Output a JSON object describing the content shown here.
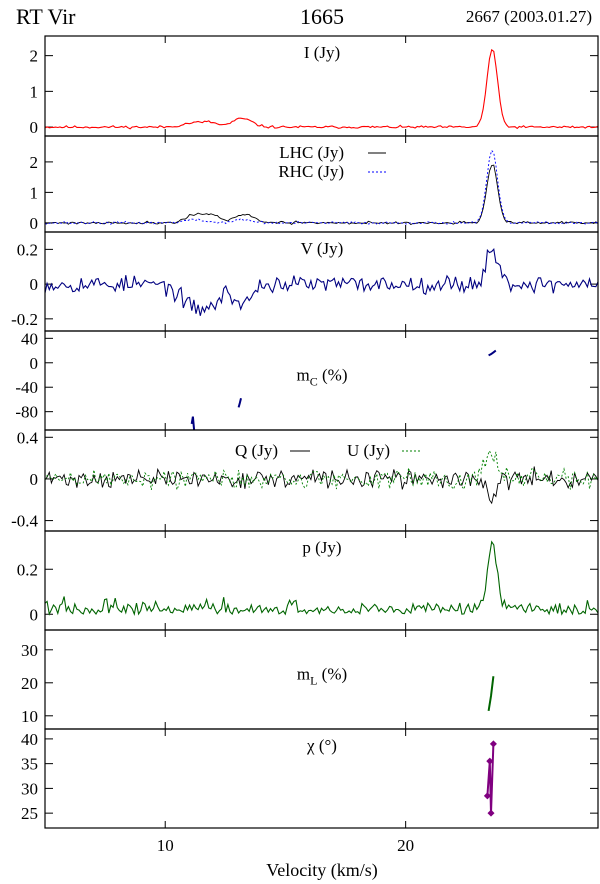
{
  "header": {
    "star": "RT Vir",
    "line": "1665",
    "epoch": "2667 (2003.01.27)"
  },
  "chart_data": {
    "type": "line",
    "xlabel": "Velocity (km/s)",
    "xlim": [
      5,
      28
    ],
    "xticks": [
      10,
      20
    ],
    "panels": [
      {
        "id": "I",
        "label": "I (Jy)",
        "ylim": [
          -0.25,
          2.55
        ],
        "yticks": [
          0,
          1,
          2
        ],
        "series": [
          {
            "key": "I",
            "color": "#ff0000",
            "dash": "",
            "width": 1.1,
            "features": [
              {
                "x": 23.6,
                "w": 0.22,
                "a": 2.18
              },
              {
                "x": 11.2,
                "w": 0.45,
                "a": 0.12
              },
              {
                "x": 11.9,
                "w": 0.3,
                "a": 0.1
              },
              {
                "x": 13.2,
                "w": 0.4,
                "a": 0.24
              }
            ],
            "noise": 0.025,
            "seed": 11
          }
        ]
      },
      {
        "id": "LR",
        "ylim": [
          -0.3,
          2.85
        ],
        "yticks": [
          0,
          1,
          2
        ],
        "legend": [
          {
            "label": "LHC (Jy)",
            "color": "#000000",
            "dash": ""
          },
          {
            "label": "RHC (Jy)",
            "color": "#0000ff",
            "dash": "2,2"
          }
        ],
        "series": [
          {
            "key": "LHC",
            "color": "#000000",
            "dash": "",
            "width": 0.9,
            "features": [
              {
                "x": 23.6,
                "w": 0.22,
                "a": 1.95
              },
              {
                "x": 11.2,
                "w": 0.35,
                "a": 0.28
              },
              {
                "x": 11.95,
                "w": 0.3,
                "a": 0.26
              },
              {
                "x": 13.3,
                "w": 0.4,
                "a": 0.28
              }
            ],
            "noise": 0.03,
            "seed": 21
          },
          {
            "key": "RHC",
            "color": "#0000ff",
            "dash": "2,2",
            "width": 0.9,
            "features": [
              {
                "x": 23.6,
                "w": 0.22,
                "a": 2.4
              },
              {
                "x": 11.2,
                "w": 0.45,
                "a": 0.1
              },
              {
                "x": 13.2,
                "w": 0.4,
                "a": 0.1
              }
            ],
            "noise": 0.03,
            "seed": 37
          }
        ]
      },
      {
        "id": "V",
        "label": "V (Jy)",
        "ylim": [
          -0.27,
          0.3
        ],
        "yticks": [
          0.2,
          0,
          -0.2
        ],
        "yticklabels": [
          "0.2",
          "0",
          "-0.2"
        ],
        "series": [
          {
            "key": "V",
            "color": "#000080",
            "dash": "",
            "width": 1.1,
            "features": [
              {
                "x": 11.2,
                "w": 0.55,
                "a": -0.13
              },
              {
                "x": 12.0,
                "w": 0.35,
                "a": -0.08
              },
              {
                "x": 13.2,
                "w": 0.35,
                "a": -0.12
              },
              {
                "x": 23.6,
                "w": 0.25,
                "a": 0.2
              }
            ],
            "noise": 0.035,
            "seed": 53
          }
        ]
      },
      {
        "id": "mC",
        "label": "m",
        "label_sub": "C",
        "label_tail": " (%)",
        "ylim": [
          -110,
          52
        ],
        "yticks": [
          40,
          0,
          -40,
          -80
        ],
        "yticklabels": [
          "40",
          "0",
          "-40",
          "-80"
        ],
        "segments": [
          {
            "color": "#000080",
            "points": [
              [
                11.1,
                -100
              ],
              [
                11.15,
                -88
              ],
              [
                11.2,
                -110
              ]
            ]
          },
          {
            "color": "#000080",
            "points": [
              [
                13.05,
                -73
              ],
              [
                13.1,
                -66
              ],
              [
                13.15,
                -58
              ]
            ]
          },
          {
            "color": "#000080",
            "points": [
              [
                23.45,
                12
              ],
              [
                23.55,
                14
              ],
              [
                23.65,
                17
              ],
              [
                23.75,
                20
              ]
            ]
          }
        ]
      },
      {
        "id": "QU",
        "ylim": [
          -0.5,
          0.47
        ],
        "yticks": [
          0.4,
          0,
          -0.4
        ],
        "yticklabels": [
          "0.4",
          "0",
          "-0.4"
        ],
        "legend": [
          {
            "label": "Q (Jy)",
            "color": "#000000",
            "dash": ""
          },
          {
            "label": "U (Jy)",
            "color": "#008000",
            "dash": "2,2"
          }
        ],
        "series": [
          {
            "key": "Q",
            "color": "#000000",
            "dash": "",
            "width": 0.9,
            "features": [
              {
                "x": 23.6,
                "w": 0.2,
                "a": -0.2
              }
            ],
            "noise": 0.06,
            "seed": 71
          },
          {
            "key": "U",
            "color": "#008000",
            "dash": "2,2",
            "width": 0.9,
            "features": [
              {
                "x": 23.6,
                "w": 0.22,
                "a": 0.28
              }
            ],
            "noise": 0.07,
            "seed": 89
          }
        ]
      },
      {
        "id": "p",
        "label": "p (Jy)",
        "ylim": [
          -0.07,
          0.37
        ],
        "yticks": [
          0.2,
          0
        ],
        "yticklabels": [
          "0.2",
          "0"
        ],
        "series": [
          {
            "key": "p",
            "color": "#006400",
            "dash": "",
            "width": 1.1,
            "features": [
              {
                "x": 23.6,
                "w": 0.2,
                "a": 0.3
              }
            ],
            "noise": 0.035,
            "positive": true,
            "seed": 97
          }
        ]
      },
      {
        "id": "mL",
        "label": "m",
        "label_sub": "L",
        "label_tail": " (%)",
        "ylim": [
          6,
          36
        ],
        "yticks": [
          30,
          20,
          10
        ],
        "yticklabels": [
          "30",
          "20",
          "10"
        ],
        "segments": [
          {
            "color": "#006400",
            "points": [
              [
                23.45,
                11.5
              ],
              [
                23.55,
                16
              ],
              [
                23.65,
                22
              ]
            ]
          }
        ]
      },
      {
        "id": "chi",
        "label": "χ (°)",
        "ylim": [
          22,
          42
        ],
        "yticks": [
          40,
          35,
          30,
          25
        ],
        "yticklabels": [
          "40",
          "35",
          "30",
          "25"
        ],
        "segments": [
          {
            "color": "#800080",
            "markers": true,
            "points": [
              [
                23.4,
                28.5
              ],
              [
                23.5,
                35.5
              ],
              [
                23.55,
                25
              ],
              [
                23.65,
                39
              ]
            ]
          }
        ]
      }
    ]
  }
}
